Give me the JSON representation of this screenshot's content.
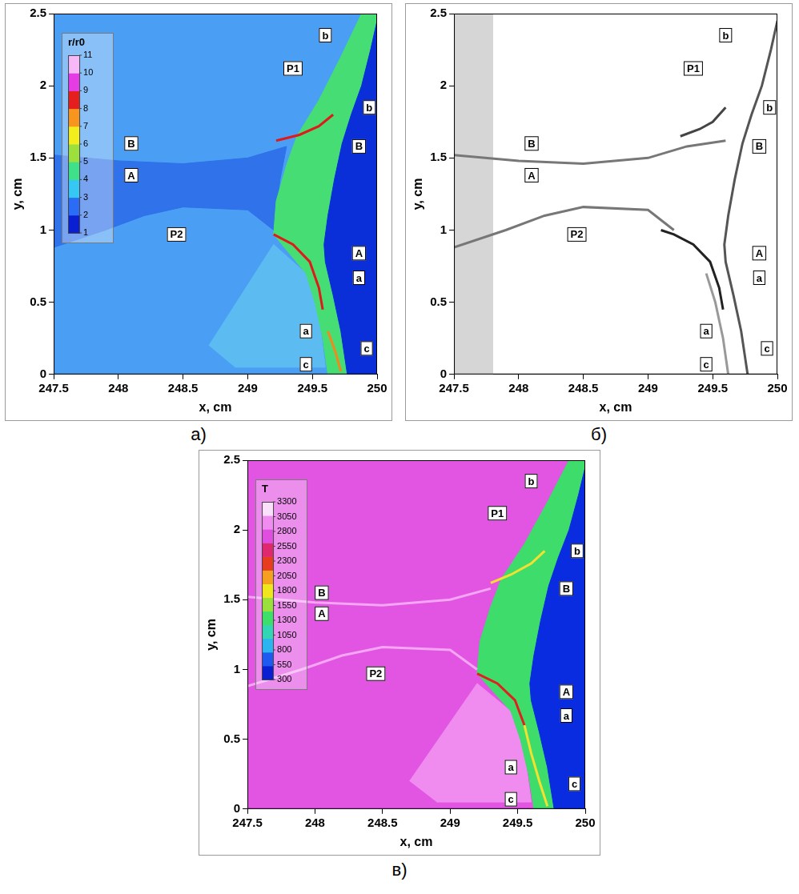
{
  "chart_data": [
    {
      "type": "scatter",
      "caption": "а)",
      "x_label": "x, cm",
      "y_label": "y, cm",
      "xlim": [
        247.5,
        250
      ],
      "ylim": [
        0,
        2.5
      ],
      "xticks": [
        247.5,
        248,
        248.5,
        249,
        249.5,
        250
      ],
      "yticks": [
        0,
        0.5,
        1,
        1.5,
        2,
        2.5
      ],
      "grid": false,
      "colorbar": {
        "title": "r/r0",
        "range": [
          1,
          11
        ],
        "ticks": [
          1,
          2,
          3,
          4,
          5,
          6,
          7,
          8,
          9,
          10,
          11
        ],
        "colors": [
          "#0a1ed2",
          "#2a6cf5",
          "#35c8f5",
          "#3ee08a",
          "#9be03c",
          "#f2ee1e",
          "#f7951e",
          "#e51e1e",
          "#e63ce6",
          "#f6b8f6"
        ]
      },
      "series": [
        {
          "type": "area",
          "color": "#4a9ff5",
          "x": [
            247.5,
            250,
            250,
            247.5
          ],
          "values": [
            0,
            0,
            2.5,
            2.5
          ]
        },
        {
          "type": "area",
          "color": "#5cbcf2",
          "x": [
            248.7,
            249.2,
            249.45,
            249.55,
            249.6,
            248.9
          ],
          "values": [
            0.2,
            0.9,
            0.7,
            0.4,
            0.05,
            0.05
          ]
        },
        {
          "type": "area",
          "color": "#2f72ea",
          "x": [
            247.5,
            248.0,
            248.5,
            249.0,
            249.3,
            249.25,
            249.2,
            249.0,
            248.5,
            248.2,
            247.9,
            247.5
          ],
          "values": [
            1.52,
            1.48,
            1.46,
            1.5,
            1.58,
            1.35,
            1.0,
            1.14,
            1.16,
            1.1,
            1.0,
            0.88
          ]
        },
        {
          "type": "area",
          "color": "#46de74",
          "x": [
            249.62,
            249.58,
            249.52,
            249.45,
            249.2,
            249.22,
            249.3,
            249.38,
            249.55,
            249.72,
            249.88,
            250,
            250,
            249.95,
            249.88,
            249.8,
            249.73,
            249.67,
            249.62,
            249.59,
            249.6,
            249.66,
            249.72,
            249.77
          ],
          "values": [
            0,
            0.25,
            0.5,
            0.7,
            0.97,
            1.2,
            1.45,
            1.65,
            1.9,
            2.2,
            2.5,
            2.5,
            2.45,
            2.25,
            2.0,
            1.8,
            1.6,
            1.35,
            1.1,
            0.9,
            0.78,
            0.55,
            0.3,
            0
          ]
        },
        {
          "type": "area",
          "color": "#0a2ed8",
          "x": [
            249.77,
            249.72,
            249.66,
            249.6,
            249.59,
            249.62,
            249.67,
            249.73,
            249.8,
            249.88,
            249.95,
            250,
            250,
            250
          ],
          "values": [
            0,
            0.3,
            0.55,
            0.78,
            0.9,
            1.1,
            1.35,
            1.6,
            1.8,
            2.0,
            2.25,
            2.45,
            2.5,
            0
          ]
        },
        {
          "type": "line",
          "color": "#e01a1a",
          "x": [
            249.2,
            249.35,
            249.48,
            249.55,
            249.58
          ],
          "values": [
            0.97,
            0.9,
            0.78,
            0.6,
            0.45
          ]
        },
        {
          "type": "line",
          "color": "#e01a1a",
          "x": [
            249.22,
            249.4,
            249.55,
            249.66
          ],
          "values": [
            1.62,
            1.66,
            1.72,
            1.8
          ]
        },
        {
          "type": "line",
          "color": "#f08a1e",
          "x": [
            249.62,
            249.68,
            249.72
          ],
          "values": [
            0.3,
            0.15,
            0.02
          ]
        }
      ],
      "annotations": [
        {
          "text": "b",
          "x": 249.6,
          "y": 2.35
        },
        {
          "text": "P1",
          "x": 249.35,
          "y": 2.12
        },
        {
          "text": "b",
          "x": 249.94,
          "y": 1.85
        },
        {
          "text": "B",
          "x": 249.86,
          "y": 1.58
        },
        {
          "text": "B",
          "x": 248.1,
          "y": 1.6
        },
        {
          "text": "A",
          "x": 248.1,
          "y": 1.38
        },
        {
          "text": "P2",
          "x": 248.45,
          "y": 0.97
        },
        {
          "text": "A",
          "x": 249.86,
          "y": 0.84
        },
        {
          "text": "a",
          "x": 249.86,
          "y": 0.67
        },
        {
          "text": "a",
          "x": 249.45,
          "y": 0.3
        },
        {
          "text": "c",
          "x": 249.45,
          "y": 0.07
        },
        {
          "text": "c",
          "x": 249.92,
          "y": 0.18
        }
      ]
    },
    {
      "type": "scatter",
      "caption": "б)",
      "x_label": "x, cm",
      "y_label": "y, cm",
      "xlim": [
        247.5,
        250
      ],
      "ylim": [
        0,
        2.5
      ],
      "xticks": [
        247.5,
        248,
        248.5,
        249,
        249.5,
        250
      ],
      "yticks": [
        0,
        0.5,
        1,
        1.5,
        2,
        2.5
      ],
      "grid": false,
      "series": [
        {
          "type": "area",
          "color": "#d6d6d6",
          "x": [
            247.5,
            247.8,
            247.8,
            247.5
          ],
          "values": [
            0,
            0,
            2.5,
            2.5
          ]
        },
        {
          "type": "line",
          "color": "#555555",
          "x": [
            249.77,
            249.72,
            249.66,
            249.6,
            249.59,
            249.62,
            249.67,
            249.73,
            249.8,
            249.88,
            249.95,
            250
          ],
          "values": [
            0,
            0.3,
            0.55,
            0.78,
            0.9,
            1.1,
            1.35,
            1.6,
            1.8,
            2.0,
            2.25,
            2.45
          ]
        },
        {
          "type": "line",
          "color": "#777777",
          "x": [
            247.5,
            248.0,
            248.5,
            249.0,
            249.3,
            249.6
          ],
          "values": [
            1.52,
            1.48,
            1.46,
            1.5,
            1.58,
            1.62
          ]
        },
        {
          "type": "line",
          "color": "#777777",
          "x": [
            247.5,
            247.9,
            248.2,
            248.5,
            249.0,
            249.2
          ],
          "values": [
            0.88,
            1.0,
            1.1,
            1.16,
            1.14,
            1.0
          ]
        },
        {
          "type": "line",
          "color": "#999999",
          "x": [
            249.62,
            249.58,
            249.52,
            249.45
          ],
          "values": [
            0,
            0.25,
            0.5,
            0.7
          ]
        },
        {
          "type": "line",
          "color": "#222222",
          "x": [
            249.1,
            249.2,
            249.35,
            249.48,
            249.55,
            249.58
          ],
          "values": [
            1.0,
            0.97,
            0.9,
            0.78,
            0.6,
            0.45
          ]
        },
        {
          "type": "line",
          "color": "#444444",
          "x": [
            249.25,
            249.4,
            249.5,
            249.6
          ],
          "values": [
            1.65,
            1.7,
            1.75,
            1.85
          ]
        }
      ],
      "annotations": [
        {
          "text": "b",
          "x": 249.6,
          "y": 2.35
        },
        {
          "text": "P1",
          "x": 249.35,
          "y": 2.12
        },
        {
          "text": "b",
          "x": 249.94,
          "y": 1.85
        },
        {
          "text": "B",
          "x": 249.86,
          "y": 1.58
        },
        {
          "text": "B",
          "x": 248.1,
          "y": 1.6
        },
        {
          "text": "A",
          "x": 248.1,
          "y": 1.38
        },
        {
          "text": "P2",
          "x": 248.45,
          "y": 0.97
        },
        {
          "text": "A",
          "x": 249.86,
          "y": 0.84
        },
        {
          "text": "a",
          "x": 249.86,
          "y": 0.67
        },
        {
          "text": "a",
          "x": 249.45,
          "y": 0.3
        },
        {
          "text": "c",
          "x": 249.45,
          "y": 0.07
        },
        {
          "text": "c",
          "x": 249.92,
          "y": 0.18
        }
      ]
    },
    {
      "type": "scatter",
      "caption": "в)",
      "x_label": "x, cm",
      "y_label": "y, cm",
      "xlim": [
        247.5,
        250
      ],
      "ylim": [
        0,
        2.5
      ],
      "xticks": [
        247.5,
        248,
        248.5,
        249,
        249.5,
        250
      ],
      "yticks": [
        0,
        0.5,
        1,
        1.5,
        2,
        2.5
      ],
      "grid": false,
      "colorbar": {
        "title": "T",
        "range": [
          300,
          3300
        ],
        "ticks": [
          300,
          550,
          800,
          1050,
          1300,
          1550,
          1800,
          2050,
          2300,
          2550,
          2800,
          3050,
          3300
        ],
        "colors": [
          "#0a1ed2",
          "#1e5af0",
          "#2ab4f0",
          "#32d6b4",
          "#3ede6a",
          "#9ae03c",
          "#f0e61e",
          "#f5a01e",
          "#e83c1e",
          "#e0286e",
          "#e04ee0",
          "#f08cf0",
          "#fbe0fb"
        ]
      },
      "series": [
        {
          "type": "area",
          "color": "#e254e2",
          "x": [
            247.5,
            250,
            250,
            247.5
          ],
          "values": [
            0,
            0,
            2.5,
            2.5
          ]
        },
        {
          "type": "area",
          "color": "#f08cf0",
          "x": [
            248.7,
            249.2,
            249.45,
            249.55,
            249.6,
            248.9
          ],
          "values": [
            0.2,
            0.9,
            0.7,
            0.4,
            0.05,
            0.05
          ]
        },
        {
          "type": "area",
          "color": "#3edc6a",
          "x": [
            249.62,
            249.58,
            249.52,
            249.45,
            249.2,
            249.22,
            249.3,
            249.38,
            249.55,
            249.72,
            249.88,
            250,
            250,
            249.95,
            249.88,
            249.8,
            249.73,
            249.67,
            249.62,
            249.59,
            249.6,
            249.66,
            249.72,
            249.77
          ],
          "values": [
            0,
            0.25,
            0.5,
            0.7,
            0.97,
            1.2,
            1.45,
            1.65,
            1.9,
            2.2,
            2.5,
            2.5,
            2.45,
            2.25,
            2.0,
            1.8,
            1.6,
            1.35,
            1.1,
            0.9,
            0.78,
            0.55,
            0.3,
            0
          ]
        },
        {
          "type": "area",
          "color": "#0a2ce0",
          "x": [
            249.77,
            249.72,
            249.66,
            249.6,
            249.59,
            249.62,
            249.67,
            249.73,
            249.8,
            249.88,
            249.95,
            250,
            250,
            250
          ],
          "values": [
            0,
            0.3,
            0.55,
            0.78,
            0.9,
            1.1,
            1.35,
            1.6,
            1.8,
            2.0,
            2.25,
            2.45,
            2.5,
            0
          ]
        },
        {
          "type": "line",
          "color": "#f4a6f4",
          "x": [
            247.5,
            248.0,
            248.5,
            249.0,
            249.3
          ],
          "values": [
            1.52,
            1.48,
            1.46,
            1.5,
            1.58
          ]
        },
        {
          "type": "line",
          "color": "#f4a6f4",
          "x": [
            247.5,
            247.9,
            248.2,
            248.5,
            249.0,
            249.2
          ],
          "values": [
            0.88,
            1.0,
            1.1,
            1.16,
            1.14,
            1.0
          ]
        },
        {
          "type": "line",
          "color": "#e02020",
          "x": [
            249.2,
            249.35,
            249.48,
            249.55
          ],
          "values": [
            0.97,
            0.9,
            0.78,
            0.6
          ]
        },
        {
          "type": "line",
          "color": "#f5e030",
          "x": [
            249.55,
            249.6,
            249.66,
            249.72
          ],
          "values": [
            0.6,
            0.4,
            0.2,
            0.02
          ]
        },
        {
          "type": "line",
          "color": "#f5e030",
          "x": [
            249.3,
            249.45,
            249.6,
            249.7
          ],
          "values": [
            1.62,
            1.68,
            1.76,
            1.85
          ]
        }
      ],
      "annotations": [
        {
          "text": "b",
          "x": 249.6,
          "y": 2.35
        },
        {
          "text": "P1",
          "x": 249.35,
          "y": 2.12
        },
        {
          "text": "b",
          "x": 249.94,
          "y": 1.85
        },
        {
          "text": "B",
          "x": 249.86,
          "y": 1.58
        },
        {
          "text": "B",
          "x": 248.05,
          "y": 1.55
        },
        {
          "text": "A",
          "x": 248.05,
          "y": 1.4
        },
        {
          "text": "P2",
          "x": 248.45,
          "y": 0.97
        },
        {
          "text": "A",
          "x": 249.86,
          "y": 0.84
        },
        {
          "text": "a",
          "x": 249.86,
          "y": 0.67
        },
        {
          "text": "a",
          "x": 249.45,
          "y": 0.3
        },
        {
          "text": "c",
          "x": 249.45,
          "y": 0.07
        },
        {
          "text": "c",
          "x": 249.92,
          "y": 0.18
        }
      ]
    }
  ]
}
